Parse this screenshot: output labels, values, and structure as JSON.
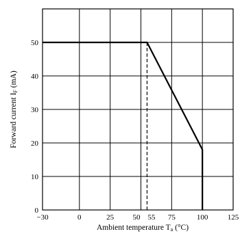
{
  "chart_data": {
    "type": "line",
    "xlabel": "Ambient temperature",
    "xlabel_symbol": "T",
    "xlabel_sub": "a",
    "xlabel_unit": " (°C)",
    "ylabel": "Forward current",
    "ylabel_symbol": "I",
    "ylabel_sub": "F",
    "ylabel_unit": " (mA)",
    "xlim": [
      -30,
      125
    ],
    "ylim": [
      0,
      60
    ],
    "x_ticks": [
      -30,
      0,
      25,
      50,
      55,
      75,
      100,
      125
    ],
    "x_tick_labels": [
      "−30",
      "0",
      "25",
      "50",
      "55",
      "75",
      "100",
      "125"
    ],
    "y_ticks": [
      0,
      10,
      20,
      30,
      40,
      50
    ],
    "y_tick_labels": [
      "0",
      "10",
      "20",
      "30",
      "40",
      "50"
    ],
    "grid": true,
    "series": [
      {
        "x": [
          -30,
          55,
          100,
          100
        ],
        "y": [
          50,
          50,
          18,
          0
        ],
        "color": "#000000"
      }
    ],
    "dashed_verticals": [
      {
        "x": 55,
        "y_top": 50
      }
    ]
  }
}
